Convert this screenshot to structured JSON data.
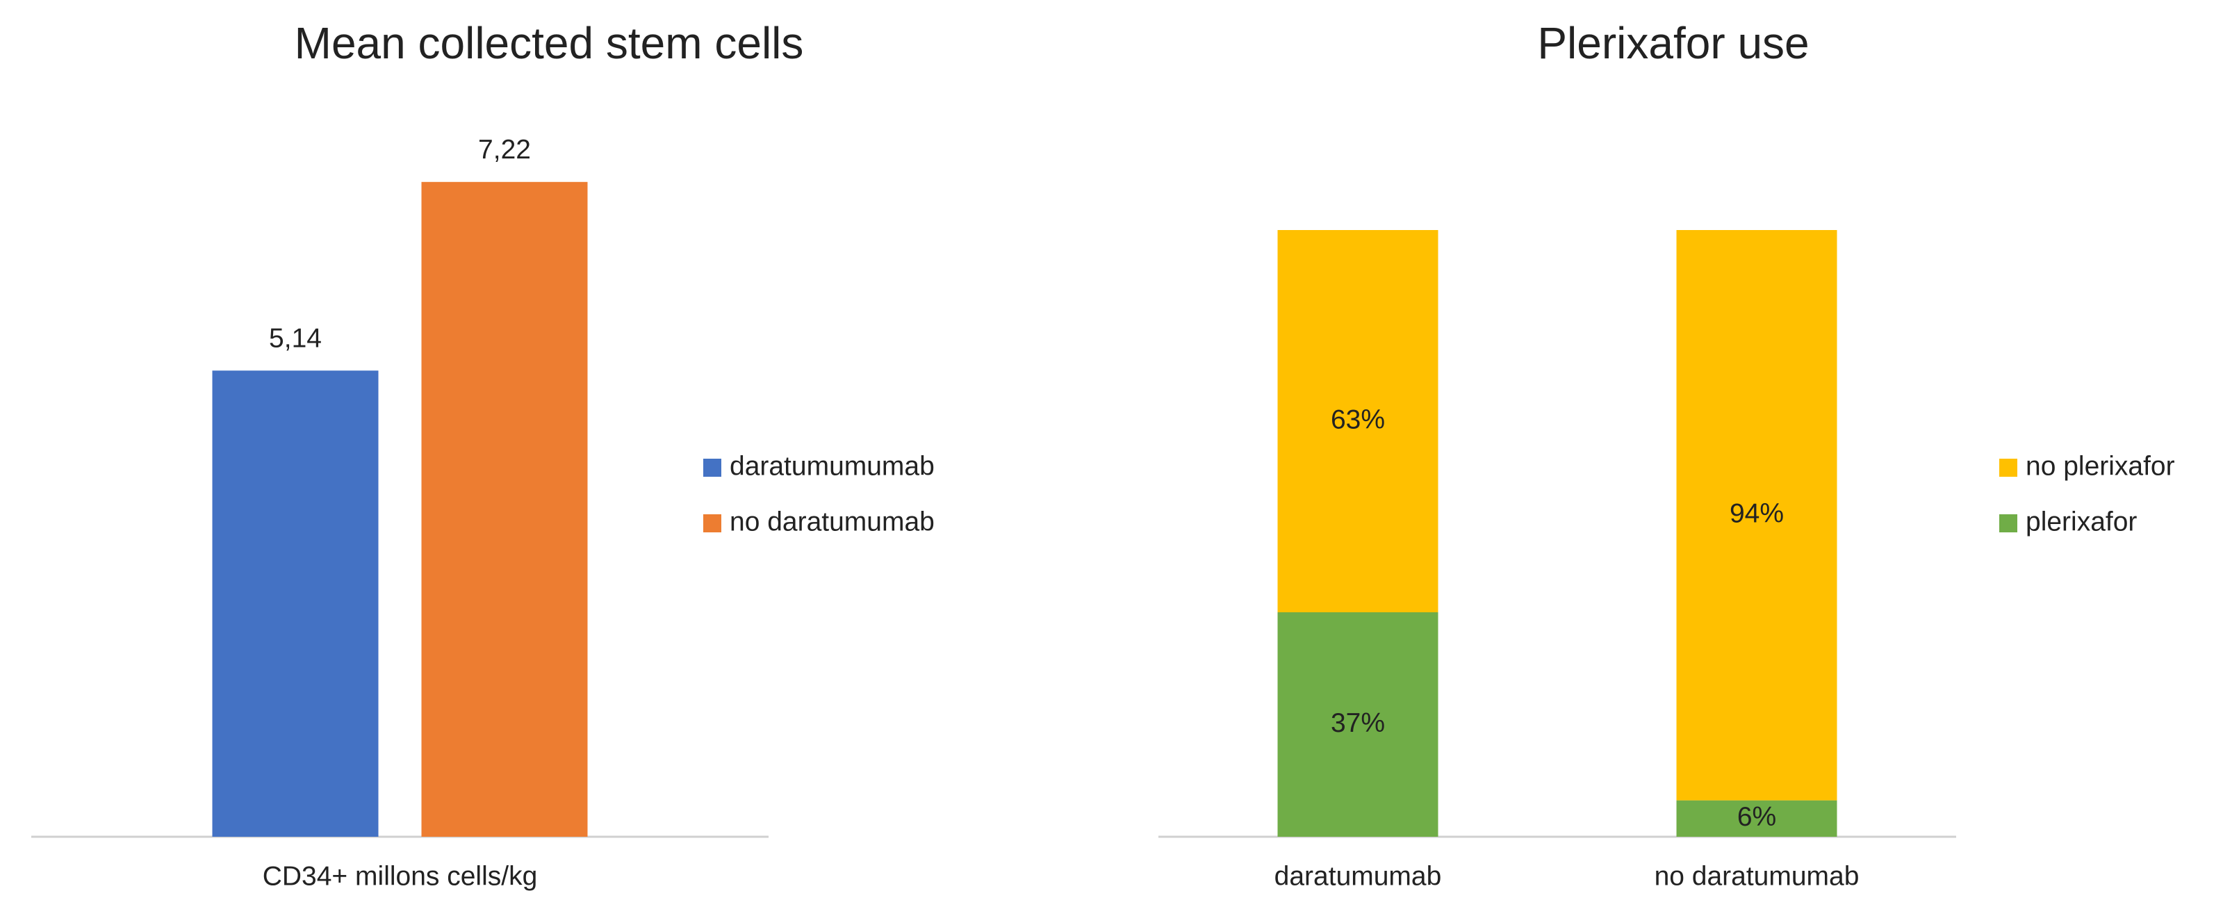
{
  "chart_data": [
    {
      "type": "bar",
      "title": "Mean collected stem cells",
      "categories": [
        "CD34+ millons cells/kg"
      ],
      "series": [
        {
          "name": "daratumumumab",
          "color": "#4472c4",
          "values": [
            5.14
          ],
          "value_labels": [
            "5,14"
          ]
        },
        {
          "name": "no daratumumab",
          "color": "#ed7d31",
          "values": [
            7.22
          ],
          "value_labels": [
            "7,22"
          ]
        }
      ],
      "ylim": [
        0,
        8
      ],
      "legend": "right"
    },
    {
      "type": "stacked_bar",
      "title": "Plerixafor use",
      "categories": [
        "daratumumab",
        "no daratumumab"
      ],
      "series": [
        {
          "name": "no plerixafor",
          "color": "#ffc000",
          "values": [
            63,
            94
          ],
          "value_labels": [
            "63%",
            "94%"
          ]
        },
        {
          "name": "plerixafor",
          "color": "#70ad47",
          "values": [
            37,
            6
          ],
          "value_labels": [
            "37%",
            "6%"
          ]
        }
      ],
      "ylim": [
        0,
        100
      ],
      "legend": "right"
    }
  ]
}
